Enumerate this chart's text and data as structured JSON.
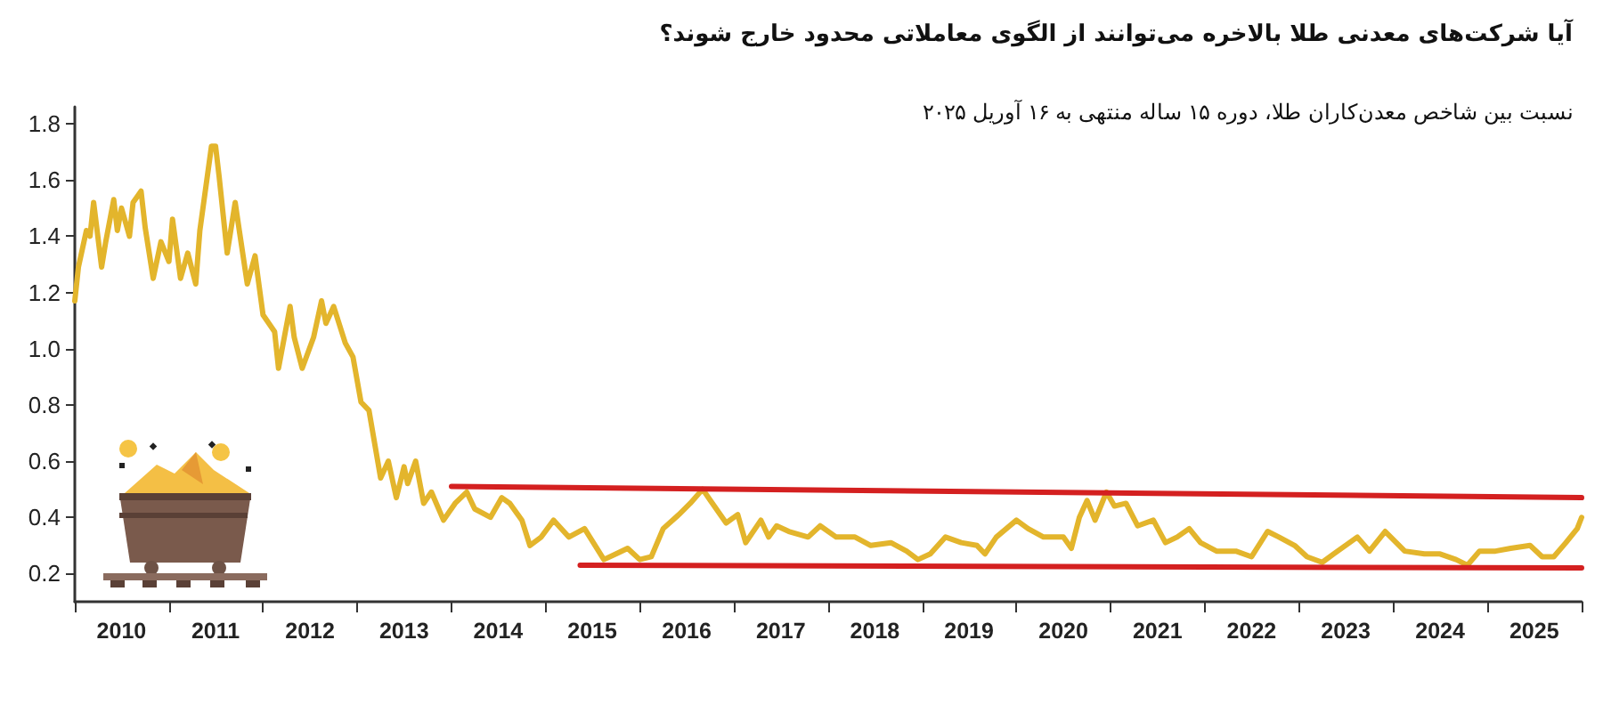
{
  "chart_data": {
    "type": "line",
    "title": "آیا شرکت‌های معدنی طلا بالاخره می‌توانند از الگوی معاملاتی محدود خارج شوند؟",
    "subtitle": "نسبت بین شاخص معدن‌کاران طلا، دوره ۱۵ ساله منتهی به ۱۶ آوریل ۲۰۲۵",
    "series": [
      {
        "color": "#e3b52c",
        "x": [
          "2010-01-01",
          "2010-01-15",
          "2010-02-15",
          "2010-03-01",
          "2010-03-15",
          "2010-04-15",
          "2010-05-01",
          "2010-06-01",
          "2010-06-15",
          "2010-07-01",
          "2010-08-01",
          "2010-08-15",
          "2010-09-15",
          "2010-10-01",
          "2010-11-01",
          "2010-12-01",
          "2011-01-01",
          "2011-01-15",
          "2011-02-15",
          "2011-03-15",
          "2011-04-15",
          "2011-05-01",
          "2011-06-15",
          "2011-07-01",
          "2011-07-15",
          "2011-08-15",
          "2011-09-15",
          "2011-10-01",
          "2011-11-01",
          "2011-12-01",
          "2012-01-01",
          "2012-02-15",
          "2012-03-01",
          "2012-04-15",
          "2012-05-01",
          "2012-06-01",
          "2012-07-15",
          "2012-08-15",
          "2012-09-01",
          "2012-10-01",
          "2012-11-15",
          "2012-12-15",
          "2013-01-15",
          "2013-02-15",
          "2013-04-01",
          "2013-05-01",
          "2013-06-01",
          "2013-07-01",
          "2013-07-15",
          "2013-08-15",
          "2013-09-15",
          "2013-10-15",
          "2013-12-01",
          "2014-01-15",
          "2014-03-01",
          "2014-04-01",
          "2014-06-01",
          "2014-07-15",
          "2014-08-15",
          "2014-10-01",
          "2014-11-01",
          "2014-12-15",
          "2015-02-01",
          "2015-04-01",
          "2015-06-01",
          "2015-08-15",
          "2015-10-01",
          "2015-11-15",
          "2016-01-01",
          "2016-02-15",
          "2016-04-01",
          "2016-06-01",
          "2016-07-15",
          "2016-09-01",
          "2016-10-01",
          "2016-12-01",
          "2017-01-15",
          "2017-02-15",
          "2017-04-15",
          "2017-05-15",
          "2017-06-15",
          "2017-08-01",
          "2017-10-15",
          "2017-12-01",
          "2018-02-01",
          "2018-04-15",
          "2018-06-15",
          "2018-09-01",
          "2018-11-01",
          "2018-12-15",
          "2019-02-01",
          "2019-04-01",
          "2019-06-01",
          "2019-08-01",
          "2019-09-01",
          "2019-10-15",
          "2020-01-01",
          "2020-02-15",
          "2020-04-15",
          "2020-07-01",
          "2020-08-01",
          "2020-09-01",
          "2020-10-01",
          "2020-11-01",
          "2020-12-15",
          "2021-01-15",
          "2021-03-01",
          "2021-04-15",
          "2021-06-15",
          "2021-08-01",
          "2021-09-15",
          "2021-11-01",
          "2021-12-15",
          "2022-02-15",
          "2022-05-01",
          "2022-07-01",
          "2022-09-01",
          "2022-10-15",
          "2022-12-15",
          "2023-02-01",
          "2023-04-01",
          "2023-05-15",
          "2023-08-15",
          "2023-10-01",
          "2023-12-01",
          "2024-02-15",
          "2024-05-01",
          "2024-07-01",
          "2024-09-01",
          "2024-10-15",
          "2024-12-01",
          "2025-02-01",
          "2025-04-01",
          "2025-06-15",
          "2025-08-01",
          "2025-09-15",
          "2025-11-01",
          "2025-12-15",
          "2026-01-01"
        ],
        "values": [
          1.17,
          1.29,
          1.42,
          1.4,
          1.52,
          1.29,
          1.38,
          1.53,
          1.42,
          1.5,
          1.4,
          1.52,
          1.56,
          1.43,
          1.25,
          1.38,
          1.31,
          1.46,
          1.25,
          1.34,
          1.23,
          1.42,
          1.72,
          1.72,
          1.61,
          1.34,
          1.52,
          1.42,
          1.23,
          1.33,
          1.12,
          1.06,
          0.93,
          1.15,
          1.04,
          0.93,
          1.04,
          1.17,
          1.09,
          1.15,
          1.02,
          0.97,
          0.81,
          0.78,
          0.54,
          0.6,
          0.47,
          0.58,
          0.52,
          0.6,
          0.45,
          0.49,
          0.39,
          0.45,
          0.49,
          0.43,
          0.4,
          0.47,
          0.45,
          0.39,
          0.3,
          0.33,
          0.39,
          0.33,
          0.36,
          0.25,
          0.27,
          0.29,
          0.25,
          0.26,
          0.36,
          0.41,
          0.45,
          0.5,
          0.46,
          0.38,
          0.41,
          0.31,
          0.39,
          0.33,
          0.37,
          0.35,
          0.33,
          0.37,
          0.33,
          0.33,
          0.3,
          0.31,
          0.28,
          0.25,
          0.27,
          0.33,
          0.31,
          0.3,
          0.27,
          0.33,
          0.39,
          0.36,
          0.33,
          0.33,
          0.29,
          0.4,
          0.46,
          0.39,
          0.49,
          0.44,
          0.45,
          0.37,
          0.39,
          0.31,
          0.33,
          0.36,
          0.31,
          0.28,
          0.28,
          0.26,
          0.35,
          0.33,
          0.3,
          0.26,
          0.24,
          0.27,
          0.33,
          0.28,
          0.35,
          0.28,
          0.27,
          0.27,
          0.25,
          0.23,
          0.28,
          0.28,
          0.29,
          0.3,
          0.26,
          0.26,
          0.31,
          0.36,
          0.4
        ]
      },
      {
        "color": "#d42020",
        "x": [
          "2014-01-01",
          "2026-01-01"
        ],
        "values": [
          0.51,
          0.47
        ]
      },
      {
        "color": "#d42020",
        "x": [
          "2015-05-15",
          "2026-01-01"
        ],
        "values": [
          0.23,
          0.22
        ]
      }
    ],
    "xlim": [
      "2010-01-01",
      "2026-01-01"
    ],
    "xticks": [
      {
        "value": "2010-01-01",
        "label": null
      },
      {
        "value": "2010-07-01",
        "label": "2010"
      },
      {
        "value": "2011-01-01",
        "label": null
      },
      {
        "value": "2011-07-01",
        "label": "2011"
      },
      {
        "value": "2012-01-01",
        "label": null
      },
      {
        "value": "2012-07-01",
        "label": "2012"
      },
      {
        "value": "2013-01-01",
        "label": null
      },
      {
        "value": "2013-07-01",
        "label": "2013"
      },
      {
        "value": "2014-01-01",
        "label": null
      },
      {
        "value": "2014-07-01",
        "label": "2014"
      },
      {
        "value": "2015-01-01",
        "label": null
      },
      {
        "value": "2015-07-01",
        "label": "2015"
      },
      {
        "value": "2016-01-01",
        "label": null
      },
      {
        "value": "2016-07-01",
        "label": "2016"
      },
      {
        "value": "2017-01-01",
        "label": null
      },
      {
        "value": "2017-07-01",
        "label": "2017"
      },
      {
        "value": "2018-01-01",
        "label": null
      },
      {
        "value": "2018-07-01",
        "label": "2018"
      },
      {
        "value": "2019-01-01",
        "label": null
      },
      {
        "value": "2019-07-01",
        "label": "2019"
      },
      {
        "value": "2020-01-01",
        "label": null
      },
      {
        "value": "2020-07-01",
        "label": "2020"
      },
      {
        "value": "2021-01-01",
        "label": null
      },
      {
        "value": "2021-07-01",
        "label": "2021"
      },
      {
        "value": "2022-01-01",
        "label": null
      },
      {
        "value": "2022-07-01",
        "label": "2022"
      },
      {
        "value": "2023-01-01",
        "label": null
      },
      {
        "value": "2023-07-01",
        "label": "2023"
      },
      {
        "value": "2024-01-01",
        "label": null
      },
      {
        "value": "2024-07-01",
        "label": "2024"
      },
      {
        "value": "2025-01-01",
        "label": null
      },
      {
        "value": "2025-07-01",
        "label": "2025"
      },
      {
        "value": "2026-01-01",
        "label": null
      }
    ],
    "ylim": [
      0.1,
      1.86
    ],
    "yticks": [
      0.2,
      0.4,
      0.6,
      0.8,
      {
        "value": 1,
        "label": "1.0"
      },
      1.2,
      1.4,
      1.6,
      1.8
    ],
    "grid": false,
    "marker": "none",
    "line_style": "solid"
  }
}
